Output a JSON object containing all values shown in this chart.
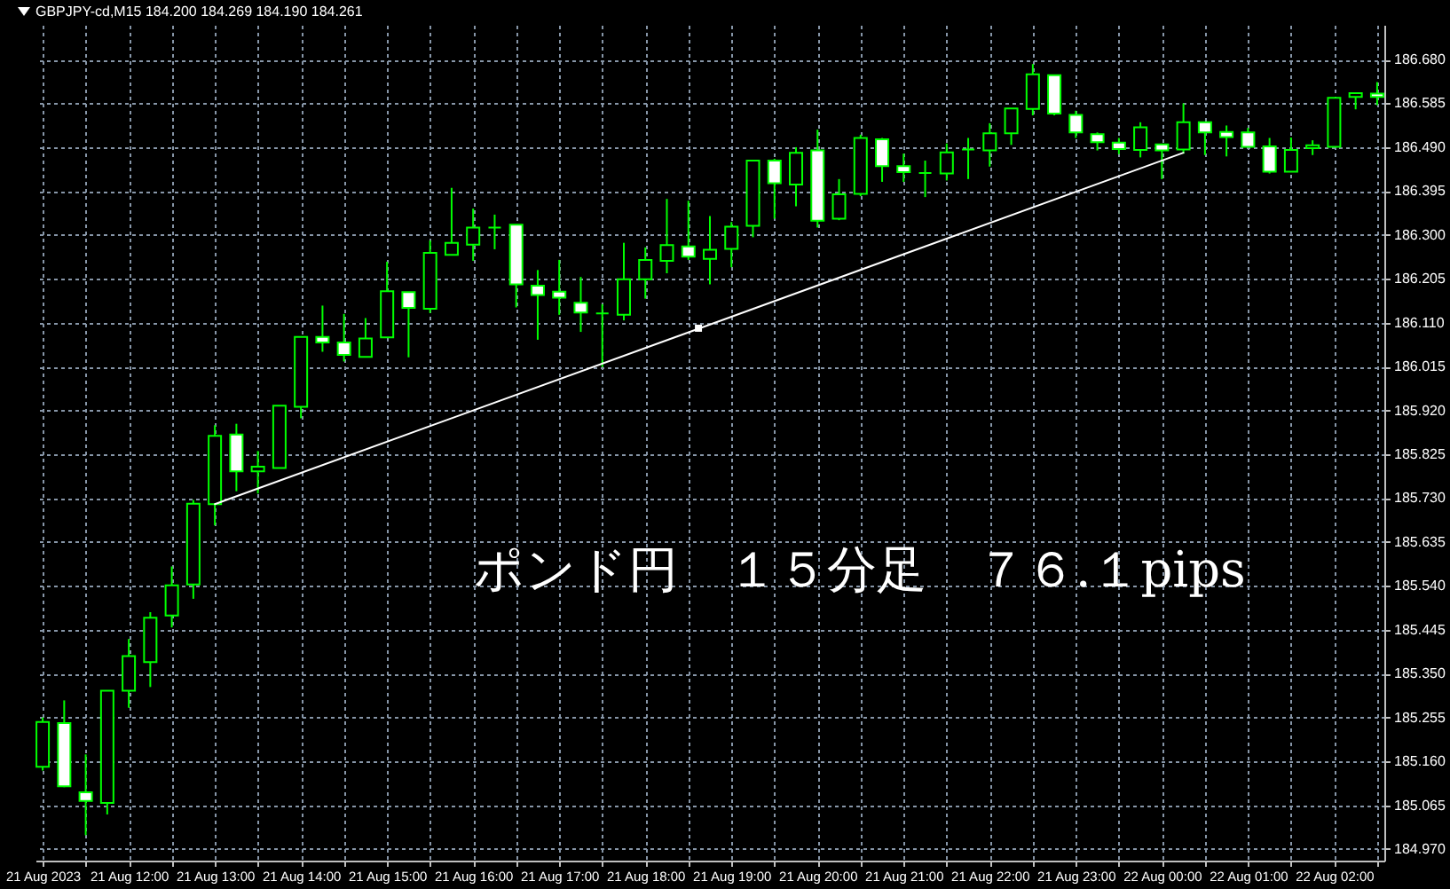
{
  "chart_data": {
    "type": "candlestick",
    "title": "GBPJPY-cd,M15 184.200 184.269 184.190 184.261",
    "annotations": [
      "ポンド円　１５分足　７６.１pips"
    ],
    "xlim": [
      "2023-08-21T10:55",
      "2023-08-22T02:35"
    ],
    "ylim": [
      184.945,
      186.755
    ],
    "xticks": [
      {
        "value": "2023-08-21T11:00",
        "label": "21 Aug 2023"
      },
      {
        "value": "2023-08-21T11:30",
        "label": null
      },
      {
        "value": "2023-08-21T12:00",
        "label": "21 Aug 12:00"
      },
      {
        "value": "2023-08-21T12:30",
        "label": null
      },
      {
        "value": "2023-08-21T13:00",
        "label": "21 Aug 13:00"
      },
      {
        "value": "2023-08-21T13:30",
        "label": null
      },
      {
        "value": "2023-08-21T14:00",
        "label": "21 Aug 14:00"
      },
      {
        "value": "2023-08-21T14:30",
        "label": null
      },
      {
        "value": "2023-08-21T15:00",
        "label": "21 Aug 15:00"
      },
      {
        "value": "2023-08-21T15:30",
        "label": null
      },
      {
        "value": "2023-08-21T16:00",
        "label": "21 Aug 16:00"
      },
      {
        "value": "2023-08-21T16:30",
        "label": null
      },
      {
        "value": "2023-08-21T17:00",
        "label": "21 Aug 17:00"
      },
      {
        "value": "2023-08-21T17:30",
        "label": null
      },
      {
        "value": "2023-08-21T18:00",
        "label": "21 Aug 18:00"
      },
      {
        "value": "2023-08-21T18:30",
        "label": null
      },
      {
        "value": "2023-08-21T19:00",
        "label": "21 Aug 19:00"
      },
      {
        "value": "2023-08-21T19:30",
        "label": null
      },
      {
        "value": "2023-08-21T20:00",
        "label": "21 Aug 20:00"
      },
      {
        "value": "2023-08-21T20:30",
        "label": null
      },
      {
        "value": "2023-08-21T21:00",
        "label": "21 Aug 21:00"
      },
      {
        "value": "2023-08-21T21:30",
        "label": null
      },
      {
        "value": "2023-08-21T22:00",
        "label": "21 Aug 22:00"
      },
      {
        "value": "2023-08-21T22:30",
        "label": null
      },
      {
        "value": "2023-08-21T23:00",
        "label": "21 Aug 23:00"
      },
      {
        "value": "2023-08-21T23:30",
        "label": null
      },
      {
        "value": "2023-08-22T00:00",
        "label": "22 Aug 00:00"
      },
      {
        "value": "2023-08-22T00:30",
        "label": null
      },
      {
        "value": "2023-08-22T01:00",
        "label": "22 Aug 01:00"
      },
      {
        "value": "2023-08-22T01:30",
        "label": null
      },
      {
        "value": "2023-08-22T02:00",
        "label": "22 Aug 02:00"
      },
      {
        "value": "2023-08-22T02:30",
        "label": null
      }
    ],
    "yticks": [
      {
        "value": 184.97,
        "label": "184.970"
      },
      185.065,
      {
        "value": 185.16,
        "label": "185.160"
      },
      185.255,
      {
        "value": 185.35,
        "label": "185.350"
      },
      185.445,
      {
        "value": 185.54,
        "label": "185.540"
      },
      185.635,
      {
        "value": 185.73,
        "label": "185.730"
      },
      185.825,
      {
        "value": 185.92,
        "label": "185.920"
      },
      186.015,
      {
        "value": 186.11,
        "label": "186.110"
      },
      186.205,
      {
        "value": 186.3,
        "label": "186.300"
      },
      186.395,
      {
        "value": 186.49,
        "label": "186.490"
      },
      186.585,
      {
        "value": 186.68,
        "label": "186.680"
      }
    ],
    "grid": true,
    "series": [
      {
        "color": "#00ff00",
        "x": [
          "2023-08-21T11:00",
          "2023-08-21T11:15",
          "2023-08-21T11:30",
          "2023-08-21T11:45",
          "2023-08-21T12:00",
          "2023-08-21T12:15",
          "2023-08-21T12:30",
          "2023-08-21T12:45",
          "2023-08-21T13:00",
          "2023-08-21T13:15",
          "2023-08-21T13:30",
          "2023-08-21T13:45",
          "2023-08-21T14:00",
          "2023-08-21T14:15",
          "2023-08-21T14:30",
          "2023-08-21T14:45",
          "2023-08-21T15:00",
          "2023-08-21T15:15",
          "2023-08-21T15:30",
          "2023-08-21T15:45",
          "2023-08-21T16:00",
          "2023-08-21T16:15",
          "2023-08-21T16:30",
          "2023-08-21T16:45",
          "2023-08-21T17:00",
          "2023-08-21T17:15",
          "2023-08-21T17:30",
          "2023-08-21T17:45",
          "2023-08-21T18:00",
          "2023-08-21T18:15",
          "2023-08-21T18:30",
          "2023-08-21T18:45",
          "2023-08-21T19:00",
          "2023-08-21T19:15",
          "2023-08-21T19:30",
          "2023-08-21T19:45",
          "2023-08-21T20:00",
          "2023-08-21T20:15",
          "2023-08-21T20:30",
          "2023-08-21T20:45",
          "2023-08-21T21:00",
          "2023-08-21T21:15",
          "2023-08-21T21:30",
          "2023-08-21T21:45",
          "2023-08-21T22:00",
          "2023-08-21T22:15",
          "2023-08-21T22:30",
          "2023-08-21T22:45",
          "2023-08-21T23:00",
          "2023-08-21T23:15",
          "2023-08-21T23:30",
          "2023-08-21T23:45",
          "2023-08-22T00:00",
          "2023-08-22T00:15",
          "2023-08-22T00:30",
          "2023-08-22T00:45",
          "2023-08-22T01:00",
          "2023-08-22T01:15",
          "2023-08-22T01:30",
          "2023-08-22T01:45",
          "2023-08-22T02:00",
          "2023-08-22T02:15",
          "2023-08-22T02:30"
        ],
        "ohlc": [
          [
            185.148,
            185.255,
            185.14,
            185.245
          ],
          [
            185.243,
            185.292,
            185.104,
            185.106
          ],
          [
            185.093,
            185.175,
            185.0,
            185.074
          ],
          [
            185.07,
            185.313,
            185.045,
            185.313
          ],
          [
            185.313,
            185.425,
            185.276,
            185.388
          ],
          [
            185.375,
            185.483,
            185.321,
            185.471
          ],
          [
            185.476,
            185.582,
            185.45,
            185.541
          ],
          [
            185.543,
            185.726,
            185.512,
            185.718
          ],
          [
            185.717,
            185.888,
            185.671,
            185.865
          ],
          [
            185.868,
            185.891,
            185.745,
            185.788
          ],
          [
            185.788,
            185.832,
            185.74,
            185.798
          ],
          [
            185.795,
            185.93,
            185.795,
            185.93
          ],
          [
            185.928,
            186.079,
            185.903,
            186.079
          ],
          [
            186.079,
            186.147,
            186.047,
            186.067
          ],
          [
            186.067,
            186.129,
            186.026,
            186.04
          ],
          [
            186.036,
            186.12,
            186.036,
            186.076
          ],
          [
            186.078,
            186.242,
            186.078,
            186.178
          ],
          [
            186.176,
            186.176,
            186.035,
            186.142
          ],
          [
            186.14,
            186.288,
            186.131,
            186.261
          ],
          [
            186.257,
            186.402,
            186.257,
            186.283
          ],
          [
            186.279,
            186.357,
            186.244,
            186.316
          ],
          [
            186.316,
            186.344,
            186.269,
            186.316
          ],
          [
            186.322,
            186.322,
            186.143,
            186.193
          ],
          [
            186.19,
            186.224,
            186.073,
            186.17
          ],
          [
            186.177,
            186.246,
            186.127,
            186.164
          ],
          [
            186.153,
            186.209,
            186.09,
            186.132
          ],
          [
            186.13,
            186.15,
            186.014,
            186.13
          ],
          [
            186.127,
            186.283,
            186.115,
            186.204
          ],
          [
            186.204,
            186.273,
            186.162,
            186.246
          ],
          [
            186.244,
            186.378,
            186.217,
            186.278
          ],
          [
            186.275,
            186.374,
            186.246,
            186.253
          ],
          [
            186.248,
            186.341,
            186.193,
            186.268
          ],
          [
            186.27,
            186.328,
            186.23,
            186.318
          ],
          [
            186.32,
            186.461,
            186.295,
            186.461
          ],
          [
            186.461,
            186.465,
            186.335,
            186.412
          ],
          [
            186.409,
            186.49,
            186.362,
            186.478
          ],
          [
            186.483,
            186.528,
            186.316,
            186.331
          ],
          [
            186.335,
            186.421,
            186.332,
            186.388
          ],
          [
            186.389,
            186.517,
            186.384,
            186.51
          ],
          [
            186.507,
            186.51,
            186.415,
            186.449
          ],
          [
            186.449,
            186.476,
            186.415,
            186.436
          ],
          [
            186.434,
            186.461,
            186.382,
            186.434
          ],
          [
            186.433,
            186.498,
            186.418,
            186.479
          ],
          [
            186.485,
            186.51,
            186.421,
            186.485
          ],
          [
            186.483,
            186.542,
            186.448,
            186.52
          ],
          [
            186.52,
            186.574,
            186.495,
            186.574
          ],
          [
            186.573,
            186.67,
            186.559,
            186.648
          ],
          [
            186.646,
            186.646,
            186.559,
            186.563
          ],
          [
            186.56,
            186.569,
            186.51,
            186.522
          ],
          [
            186.518,
            186.522,
            186.483,
            186.501
          ],
          [
            186.5,
            186.51,
            186.475,
            186.486
          ],
          [
            186.484,
            186.544,
            186.468,
            186.533
          ],
          [
            186.496,
            186.496,
            186.421,
            186.483
          ],
          [
            186.485,
            186.585,
            186.476,
            186.544
          ],
          [
            186.544,
            186.544,
            186.473,
            186.522
          ],
          [
            186.523,
            186.537,
            186.47,
            186.512
          ],
          [
            186.522,
            186.532,
            186.491,
            186.491
          ],
          [
            186.492,
            186.51,
            186.433,
            186.437
          ],
          [
            186.437,
            186.511,
            186.437,
            186.484
          ],
          [
            186.488,
            186.505,
            186.473,
            186.494
          ],
          [
            186.491,
            186.597,
            186.491,
            186.597
          ],
          [
            186.599,
            186.607,
            186.572,
            186.607
          ],
          [
            186.606,
            186.631,
            186.581,
            186.599
          ]
        ],
        "colors": [
          "#000000",
          "#ffffff",
          "#ffffff",
          "#000000",
          "#000000",
          "#000000",
          "#000000",
          "#000000",
          "#000000",
          "#ffffff",
          "#000000",
          "#000000",
          "#000000",
          "#ffffff",
          "#ffffff",
          "#000000",
          "#000000",
          "#ffffff",
          "#000000",
          "#000000",
          "#000000",
          "#00ff00",
          "#ffffff",
          "#ffffff",
          "#ffffff",
          "#ffffff",
          "#00ff00",
          "#000000",
          "#000000",
          "#000000",
          "#ffffff",
          "#000000",
          "#000000",
          "#000000",
          "#ffffff",
          "#000000",
          "#ffffff",
          "#000000",
          "#000000",
          "#ffffff",
          "#ffffff",
          "#00ff00",
          "#000000",
          "#00ff00",
          "#000000",
          "#000000",
          "#000000",
          "#ffffff",
          "#ffffff",
          "#ffffff",
          "#ffffff",
          "#000000",
          "#ffffff",
          "#000000",
          "#ffffff",
          "#ffffff",
          "#ffffff",
          "#ffffff",
          "#000000",
          "#000000",
          "#000000",
          "#000000",
          "#ffffff"
        ]
      },
      {
        "type": "line",
        "color": "#ffffff",
        "x": [
          "2023-08-21T13:00",
          "2023-08-22T00:15"
        ],
        "values": [
          185.717,
          186.478
        ]
      },
      {
        "type": "scatter",
        "color": "#ffffff",
        "marker": "square",
        "x": [
          "2023-08-21T18:37"
        ],
        "values": [
          186.098
        ]
      }
    ]
  }
}
